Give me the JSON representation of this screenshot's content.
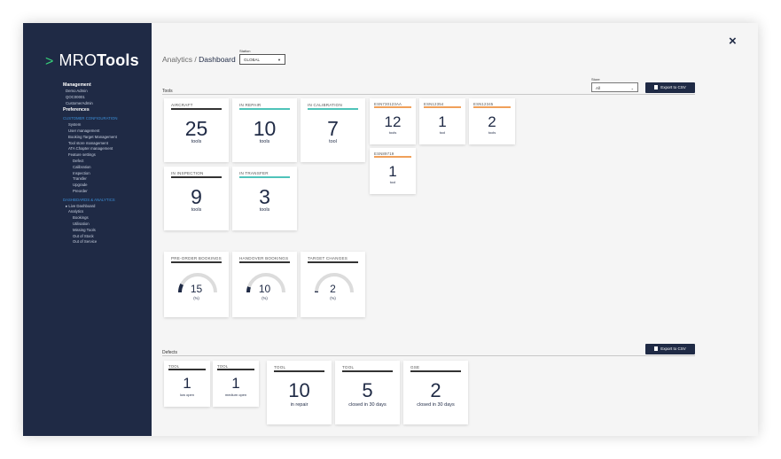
{
  "app": {
    "brand_light": "MRO",
    "brand_bold": "Tools"
  },
  "sidebar": {
    "management_head": "Management",
    "management_items": [
      "Demo Admin",
      "QOC00001",
      "CustomerAdmin"
    ],
    "preferences_head": "Preferences",
    "customer_config_label": "CUSTOMER CONFIGURATION",
    "config_items": [
      "System",
      "User management",
      "Booking Target Management",
      "Tool store management",
      "ATA Chapter management",
      "Feature settings"
    ],
    "feature_items": [
      "Defect",
      "Calibration",
      "Inspection",
      "Transfer",
      "Upgrade",
      "Preorder"
    ],
    "dashboards_label": "DASHBOARDS & ANALYTICS",
    "dash_items": [
      "▸ Live Dashboard",
      "Analytics"
    ],
    "analytics_items": [
      "Bookings",
      "Utilisation",
      "Missing Tools",
      "Out of Stock",
      "Out of Service"
    ]
  },
  "header": {
    "crumb_parent": "Analytics /",
    "crumb_current": "Dashboard",
    "close": "×"
  },
  "station": {
    "label": "Station",
    "value": "GLOBAL"
  },
  "store": {
    "label": "Store",
    "value": "All"
  },
  "tools": {
    "section_title": "Tools",
    "export_label": "Export to CSV",
    "cards": [
      {
        "title": "AIRCRAFT",
        "value": "25",
        "unit": "tools",
        "color": "#333333"
      },
      {
        "title": "IN REPAIR",
        "value": "10",
        "unit": "tools",
        "color": "#4fc3b9"
      },
      {
        "title": "IN CALIBRATION",
        "value": "7",
        "unit": "tool",
        "color": "#4fc3b9"
      },
      {
        "title": "IN INSPECTION",
        "value": "9",
        "unit": "tools",
        "color": "#333333"
      },
      {
        "title": "IN TRANSFER",
        "value": "3",
        "unit": "tools",
        "color": "#4fc3b9"
      }
    ],
    "esn_cards": [
      {
        "title": "ESN730123AA",
        "value": "12",
        "unit": "tools",
        "color": "#f0a05a"
      },
      {
        "title": "ESN12354",
        "value": "1",
        "unit": "tool",
        "color": "#f0a05a"
      },
      {
        "title": "ESN12345",
        "value": "2",
        "unit": "tools",
        "color": "#f0a05a"
      },
      {
        "title": "ESN89719",
        "value": "1",
        "unit": "tool",
        "color": "#f0a05a"
      }
    ]
  },
  "bookings": [
    {
      "title": "PRE-ORDER BOOKINGS",
      "value": "15",
      "unit": "(%)",
      "fraction": 0.15
    },
    {
      "title": "HANDOVER BOOKINGS",
      "value": "10",
      "unit": "(%)",
      "fraction": 0.1
    },
    {
      "title": "TARGET CHANGES",
      "value": "2",
      "unit": "(%)",
      "fraction": 0.02
    }
  ],
  "defects": {
    "section_title": "Defects",
    "export_label": "Export to CSV",
    "cards": [
      {
        "title": "TOOL",
        "value": "1",
        "unit": "low open"
      },
      {
        "title": "TOOL",
        "value": "1",
        "unit": "medium open"
      },
      {
        "title": "TOOL",
        "value": "10",
        "unit": "in repair"
      },
      {
        "title": "TOOL",
        "value": "5",
        "unit": "closed in 30 days"
      },
      {
        "title": "GSE",
        "value": "2",
        "unit": "closed in 30 days"
      }
    ]
  }
}
